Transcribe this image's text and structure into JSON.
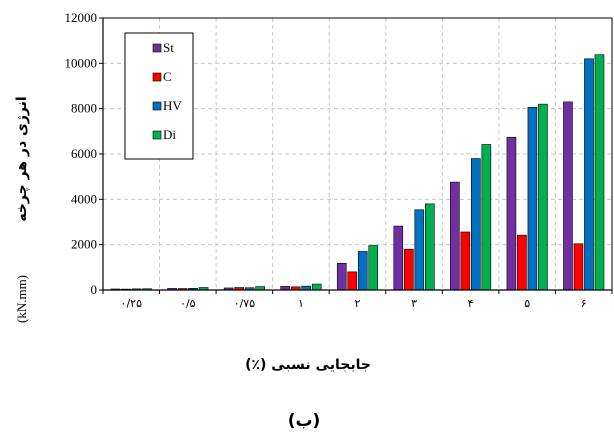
{
  "chart_data": {
    "type": "bar",
    "categories": [
      "۰/۲۵",
      "۰/۵",
      "۰/۷۵",
      "۱",
      "۲",
      "۳",
      "۴",
      "۵",
      "۶"
    ],
    "series": [
      {
        "name": "St",
        "color": "#7030a0",
        "values": [
          45,
          70,
          90,
          160,
          1180,
          2820,
          4760,
          6740,
          8300
        ]
      },
      {
        "name": "C",
        "color": "#ff0000",
        "values": [
          40,
          65,
          110,
          140,
          800,
          1800,
          2560,
          2420,
          2040
        ]
      },
      {
        "name": "HV",
        "color": "#0070c0",
        "values": [
          50,
          75,
          100,
          170,
          1700,
          3540,
          5800,
          8060,
          10200
        ]
      },
      {
        "name": "Di",
        "color": "#00b050",
        "values": [
          55,
          110,
          150,
          260,
          1960,
          3800,
          6420,
          8200,
          10380
        ]
      }
    ],
    "ylim": [
      0,
      12000
    ],
    "yticks": [
      "0",
      "2000",
      "4000",
      "6000",
      "8000",
      "10000",
      "12000"
    ],
    "ylabel": "انرژی در هر چرخه",
    "ylabel_unit": "(kN.mm)",
    "xlabel": "جابجایی نسبی (٪)",
    "grid": true,
    "legend_position": "top-left"
  },
  "caption": "(ب)"
}
